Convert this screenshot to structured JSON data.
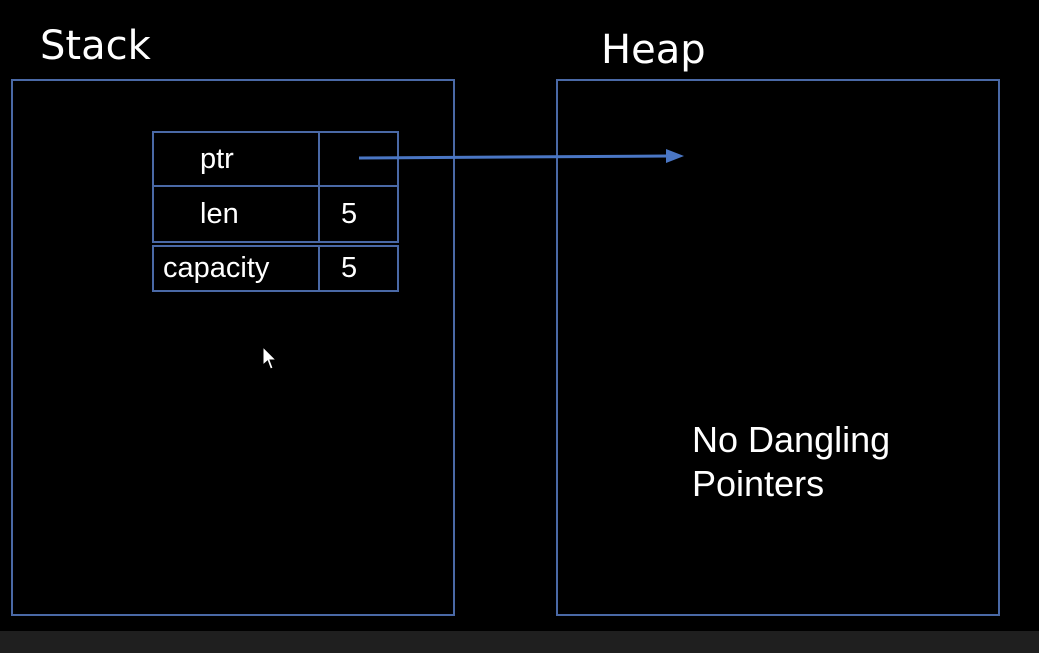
{
  "stack": {
    "title": "Stack",
    "rows": [
      {
        "label": "ptr",
        "value": ""
      },
      {
        "label": "len",
        "value": "5"
      },
      {
        "label": "capacity",
        "value": "5"
      }
    ]
  },
  "heap": {
    "title": "Heap",
    "note_line_1": "No Dangling",
    "note_line_2": "Pointers"
  },
  "colors": {
    "background": "#000000",
    "box_border": "#4a69a6",
    "arrow": "#4a76c4",
    "text": "#ffffff",
    "bottom_bar": "#1f1f1f"
  },
  "icons": {
    "cursor": "mouse-pointer-icon",
    "arrow": "arrow-right-icon"
  }
}
